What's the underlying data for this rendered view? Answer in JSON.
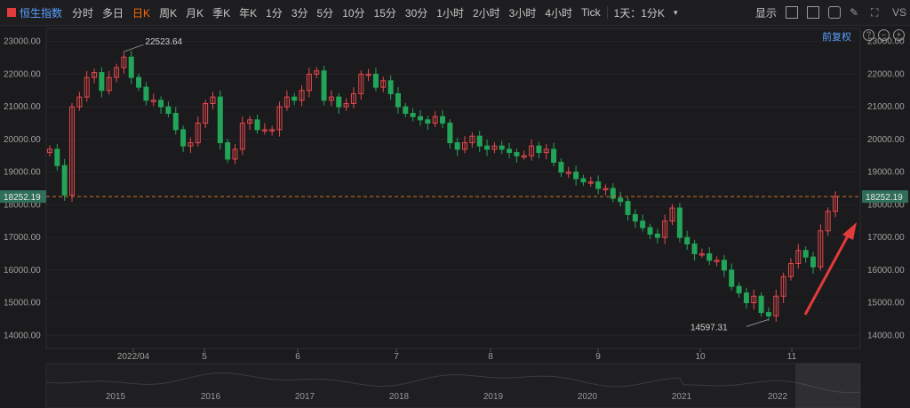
{
  "toolbar": {
    "title": "恒生指数",
    "timeframes": [
      "分时",
      "多日",
      "日K",
      "周K",
      "月K",
      "季K",
      "年K",
      "1分",
      "3分",
      "5分",
      "10分",
      "15分",
      "30分",
      "1小时",
      "2小时",
      "3小时",
      "4小时",
      "Tick"
    ],
    "active_timeframe": "日K",
    "period_select": "1天：1分K",
    "display_label": "显示",
    "vs_label": "VS"
  },
  "chart": {
    "adjust_label": "前复权",
    "current_price": "18252.19",
    "high_label": "22523.64",
    "low_label": "14597.31",
    "y_ticks": [
      "23000.00",
      "22000.00",
      "21000.00",
      "20000.00",
      "19000.00",
      "18000.00",
      "17000.00",
      "16000.00",
      "15000.00",
      "14000.00"
    ],
    "x_ticks": [
      "2022/04",
      "5",
      "6",
      "7",
      "8",
      "9",
      "10",
      "11"
    ],
    "navigator_years": [
      "2015",
      "2016",
      "2017",
      "2018",
      "2019",
      "2020",
      "2021",
      "2022"
    ],
    "colors": {
      "up": "#e6484c",
      "down": "#22a559",
      "bg": "#1b1b1d",
      "price_line": "#c9702c"
    }
  },
  "chart_data": {
    "type": "candlestick",
    "series_values": [
      19700,
      19200,
      18300,
      21000,
      21300,
      21900,
      22050,
      21500,
      21900,
      22200,
      22523,
      21900,
      21600,
      21200,
      21200,
      21000,
      20800,
      20300,
      19800,
      19900,
      20500,
      21100,
      21300,
      19900,
      19400,
      19700,
      20500,
      20600,
      20300,
      20300,
      20300,
      21000,
      21300,
      21200,
      21500,
      22000,
      22100,
      21200,
      21300,
      21000,
      21100,
      21400,
      22000,
      22000,
      21600,
      21800,
      21400,
      21000,
      20800,
      20700,
      20600,
      20500,
      20700,
      20500,
      19900,
      19700,
      19900,
      20100,
      19800,
      19700,
      19800,
      19700,
      19600,
      19500,
      19500,
      19800,
      19600,
      19700,
      19300,
      19000,
      19000,
      18800,
      18700,
      18700,
      18500,
      18500,
      18200,
      18100,
      17700,
      17500,
      17300,
      17100,
      17000,
      17500,
      17900,
      17000,
      16800,
      16500,
      16500,
      16300,
      16300,
      16000,
      15500,
      15300,
      15000,
      15200,
      14700,
      14597,
      15200,
      15800,
      16200,
      16600,
      16400,
      16100,
      17200,
      17800,
      18252
    ],
    "ylim": [
      13600,
      23400
    ]
  }
}
